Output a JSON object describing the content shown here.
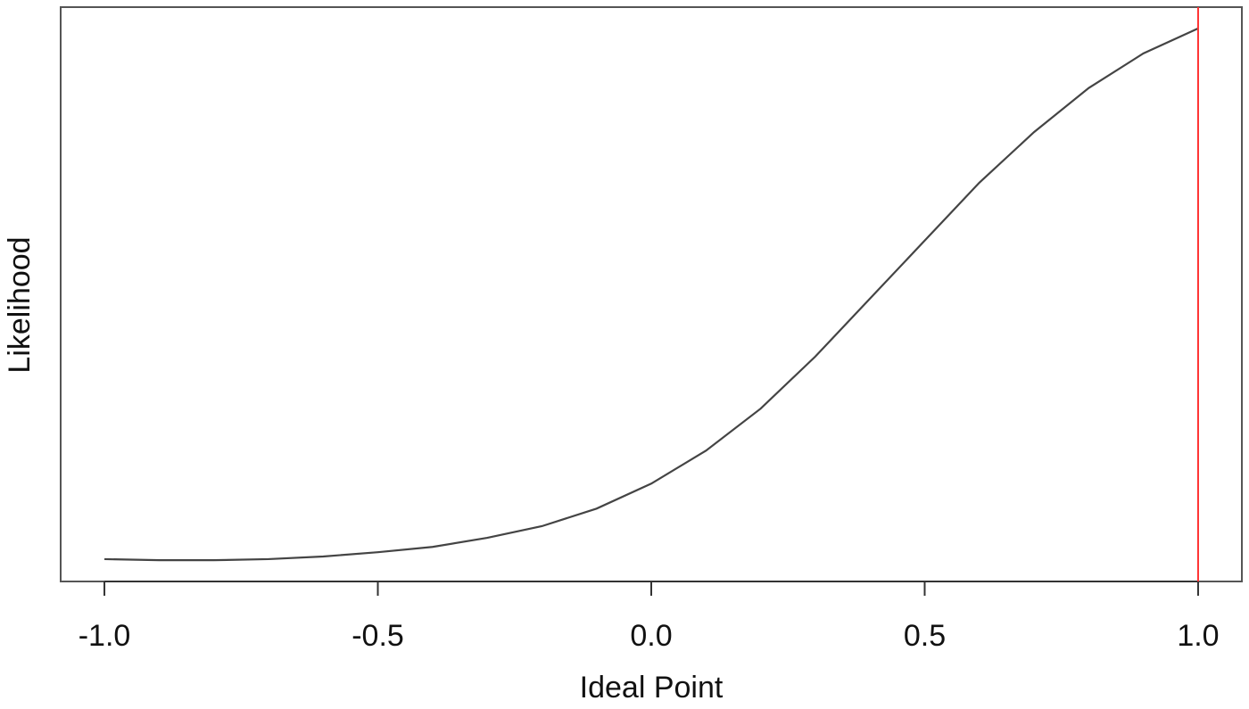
{
  "chart_data": {
    "type": "line",
    "x_label": "Ideal Point",
    "y_label": "Likelihood",
    "x": [
      -1.0,
      -0.9,
      -0.8,
      -0.7,
      -0.6,
      -0.5,
      -0.4,
      -0.3,
      -0.2,
      -0.1,
      0.0,
      0.1,
      0.2,
      0.3,
      0.4,
      0.5,
      0.6,
      0.7,
      0.8,
      0.9,
      1.0
    ],
    "series": [
      {
        "color": "#444444",
        "values": [
          0.002,
          0.0,
          0.0,
          0.002,
          0.007,
          0.015,
          0.025,
          0.042,
          0.064,
          0.097,
          0.144,
          0.206,
          0.285,
          0.383,
          0.492,
          0.601,
          0.71,
          0.805,
          0.888,
          0.953,
          1.0
        ]
      }
    ],
    "xlim": [
      -1.08,
      1.08
    ],
    "ylim": [
      -0.04,
      1.04
    ],
    "xticks": [
      {
        "value": -1,
        "label": "-1.0"
      },
      -0.5,
      {
        "value": 0,
        "label": "0.0"
      },
      0.5,
      {
        "value": 1,
        "label": "1.0"
      }
    ],
    "vline": {
      "x": 1,
      "color": "#ff3333"
    }
  }
}
